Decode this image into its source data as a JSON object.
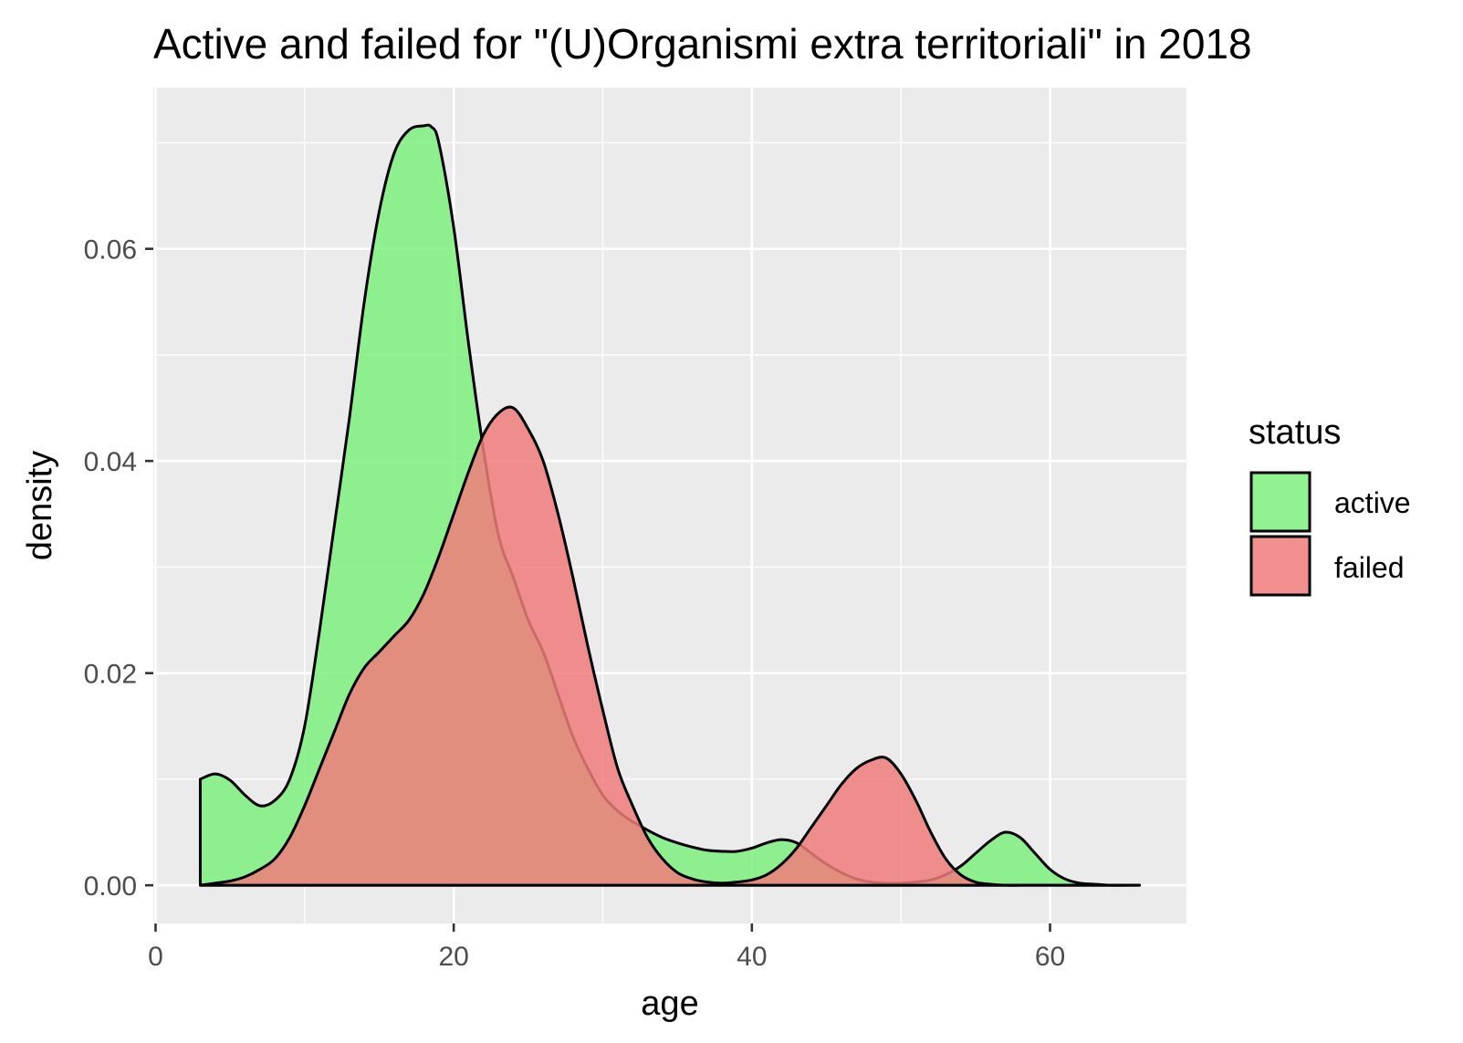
{
  "chart_data": {
    "type": "area",
    "title": "Active and failed for \"(U)Organismi extra territoriali\" in 2018",
    "xlabel": "age",
    "ylabel": "density",
    "xlim": [
      -0.15,
      69.15
    ],
    "ylim": [
      -0.0036,
      0.0752
    ],
    "x_ticks": [
      0,
      20,
      40,
      60
    ],
    "x_tick_labels": [
      "0",
      "20",
      "40",
      "60"
    ],
    "y_ticks": [
      0,
      0.02,
      0.04,
      0.06
    ],
    "y_tick_labels": [
      "0.00",
      "0.02",
      "0.04",
      "0.06"
    ],
    "grid": true,
    "legend": {
      "title": "status",
      "position": "right"
    },
    "series": [
      {
        "name": "active",
        "color": "#7cf07c",
        "x": [
          3,
          4,
          5,
          6,
          7,
          8,
          9,
          10,
          11,
          12,
          13,
          14,
          15,
          16,
          17,
          18,
          18.5,
          19,
          20,
          21,
          22,
          23,
          24,
          25,
          26,
          27,
          28,
          29,
          30,
          31,
          32,
          33,
          34,
          35,
          36,
          37,
          38,
          39,
          40,
          41,
          42,
          43,
          44,
          45,
          46,
          47,
          48,
          49,
          50,
          51,
          52,
          53,
          54,
          55,
          56,
          57,
          58,
          59,
          60,
          61,
          62,
          63,
          64,
          65,
          66
        ],
        "values": [
          0.01,
          0.0105,
          0.0099,
          0.0085,
          0.0075,
          0.008,
          0.01,
          0.015,
          0.024,
          0.034,
          0.044,
          0.055,
          0.0635,
          0.069,
          0.0712,
          0.0716,
          0.0715,
          0.07,
          0.062,
          0.051,
          0.041,
          0.033,
          0.029,
          0.025,
          0.022,
          0.018,
          0.014,
          0.011,
          0.0085,
          0.007,
          0.006,
          0.0052,
          0.0045,
          0.004,
          0.0036,
          0.0033,
          0.0032,
          0.0032,
          0.0035,
          0.004,
          0.0043,
          0.004,
          0.003,
          0.002,
          0.0012,
          0.0006,
          0.0003,
          0.0002,
          0.0002,
          0.0003,
          0.0005,
          0.001,
          0.0018,
          0.003,
          0.0042,
          0.005,
          0.0045,
          0.003,
          0.0015,
          0.0006,
          0.0002,
          0.0001,
          0.0,
          0.0,
          0.0
        ]
      },
      {
        "name": "failed",
        "color": "#f07c7c",
        "x": [
          3,
          4,
          5,
          6,
          7,
          8,
          9,
          10,
          11,
          12,
          13,
          14,
          15,
          16,
          17,
          18,
          19,
          20,
          21,
          22,
          23,
          24,
          25,
          26,
          27,
          28,
          29,
          30,
          31,
          32,
          33,
          34,
          35,
          36,
          37,
          38,
          39,
          40,
          41,
          42,
          43,
          44,
          45,
          46,
          47,
          48,
          49,
          50,
          51,
          52,
          53,
          54,
          55,
          56,
          57,
          58,
          59,
          60,
          61,
          62,
          63,
          64,
          65,
          66
        ],
        "values": [
          0.0,
          0.0002,
          0.0004,
          0.0008,
          0.0015,
          0.0025,
          0.0045,
          0.0075,
          0.011,
          0.0145,
          0.018,
          0.0205,
          0.022,
          0.0235,
          0.025,
          0.0275,
          0.031,
          0.035,
          0.039,
          0.0425,
          0.0445,
          0.045,
          0.043,
          0.04,
          0.035,
          0.029,
          0.0225,
          0.0165,
          0.011,
          0.0075,
          0.0045,
          0.0025,
          0.0012,
          0.0006,
          0.0003,
          0.0002,
          0.0003,
          0.0005,
          0.001,
          0.002,
          0.0035,
          0.0055,
          0.0075,
          0.0095,
          0.011,
          0.0118,
          0.012,
          0.0105,
          0.008,
          0.005,
          0.0025,
          0.001,
          0.0003,
          0.0001,
          0.0,
          0.0,
          0.0,
          0.0,
          0.0,
          0.0,
          0.0,
          0.0,
          0.0,
          0.0
        ]
      }
    ]
  }
}
